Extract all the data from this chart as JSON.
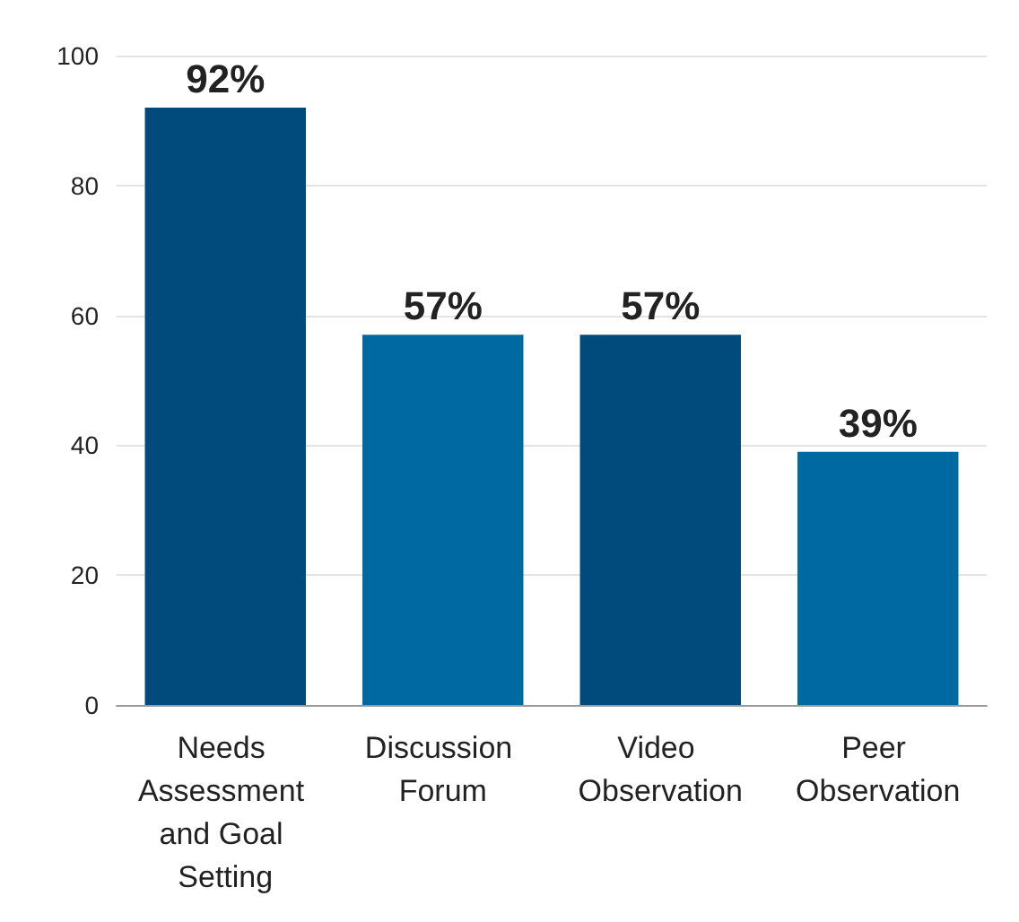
{
  "chart_data": {
    "type": "bar",
    "categories": [
      "Needs Assessment and Goal Setting",
      "Discussion Forum",
      "Video Observation",
      "Peer Observation"
    ],
    "values": [
      92,
      57,
      57,
      39
    ],
    "colors": [
      "#004b7b",
      "#0069a1",
      "#004b7b",
      "#0069a1"
    ],
    "value_labels": [
      "92%",
      "57%",
      "57%",
      "39%"
    ],
    "ylim": [
      0,
      100
    ],
    "yticks": [
      0,
      20,
      40,
      60,
      80,
      100
    ],
    "grid": "y"
  }
}
